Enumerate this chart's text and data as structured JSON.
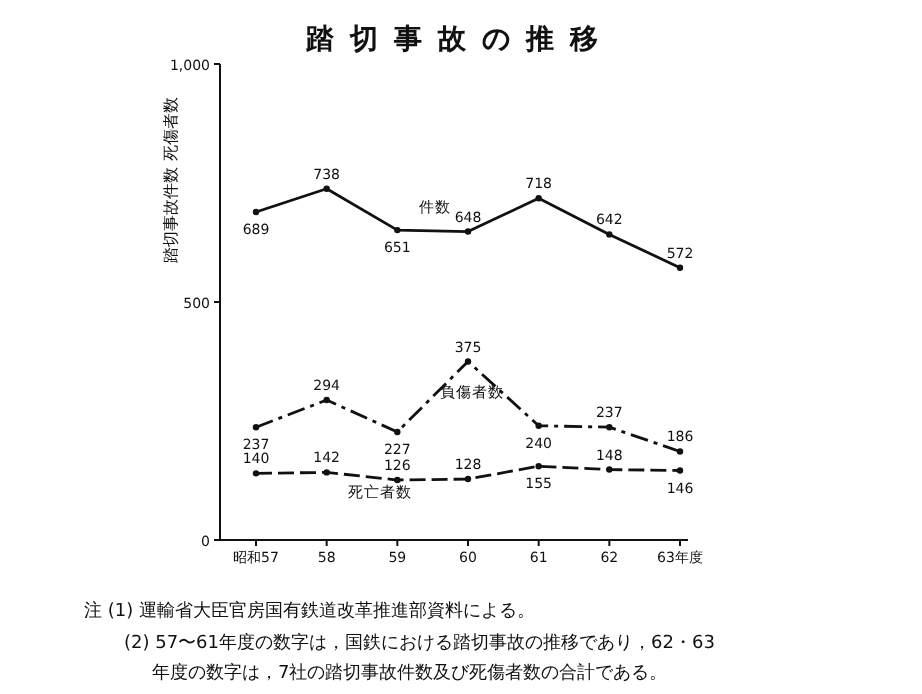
{
  "chart_data": {
    "type": "line",
    "title": "踏切事故の推移",
    "ylabel": "踏切事故件数 死傷者数",
    "categories": [
      "昭和57",
      "58",
      "59",
      "60",
      "61",
      "62",
      "63年度"
    ],
    "series": [
      {
        "name": "件数",
        "color": "#111111",
        "line_style": "solid",
        "values": [
          689,
          738,
          651,
          648,
          718,
          642,
          572
        ]
      },
      {
        "name": "負傷者数",
        "color": "#111111",
        "line_style": "dashdot",
        "values": [
          237,
          294,
          227,
          375,
          240,
          237,
          186
        ]
      },
      {
        "name": "死亡者数",
        "color": "#111111",
        "line_style": "dashed",
        "values": [
          140,
          142,
          126,
          128,
          155,
          148,
          146
        ]
      }
    ],
    "ylim": [
      0,
      1000
    ],
    "yticks": [
      0,
      500,
      {
        "value": 1000,
        "label": "1,000"
      }
    ],
    "data_labels": true,
    "grid": false,
    "legend": false,
    "marker": "circle",
    "annotations": [
      "注 (1) 運輸省大臣官房国有鉄道改革推進部資料による。",
      "(2) 57〜61年度の数字は，国鉄における踏切事故の推移であり，62・63年度の数字は，7社の踏切事故件数及び死傷者数の合計である。"
    ]
  }
}
